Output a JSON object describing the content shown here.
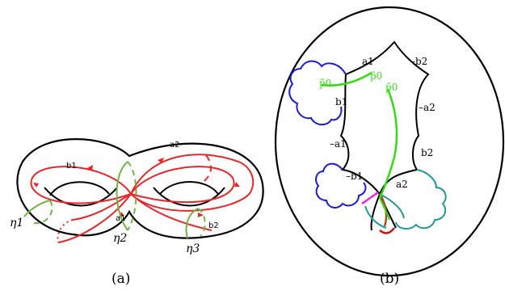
{
  "panel_a": {
    "caption": "(a)",
    "edge_labels": {
      "a1": "a1",
      "a2": "a2",
      "b1": "b1",
      "b2": "b2"
    },
    "curve_labels": {
      "eta1": "η1",
      "eta2": "η2",
      "eta3": "η3"
    }
  },
  "panel_b": {
    "caption": "(b)",
    "edge_labels": {
      "a1_top": "a1",
      "b2_top": "–b2",
      "b1_left": "b1",
      "a2_right": "–a2",
      "a1_left": "–a1",
      "b2_right": "b2",
      "b1_bottom": "–b1",
      "a2_bottom": "a2"
    },
    "point_labels": {
      "p0_left": "p̃0",
      "p0_mid": "p̃0",
      "p0_right": "p̃0"
    }
  },
  "colors": {
    "outline": "#000000",
    "red": "#e8262a",
    "green": "#70b443",
    "bright_green": "#33dd11",
    "blue": "#1a1ad4",
    "teal": "#1f9a96",
    "magenta": "#ee22dd",
    "brown": "#a0521e",
    "dark_red": "#cc1111"
  }
}
